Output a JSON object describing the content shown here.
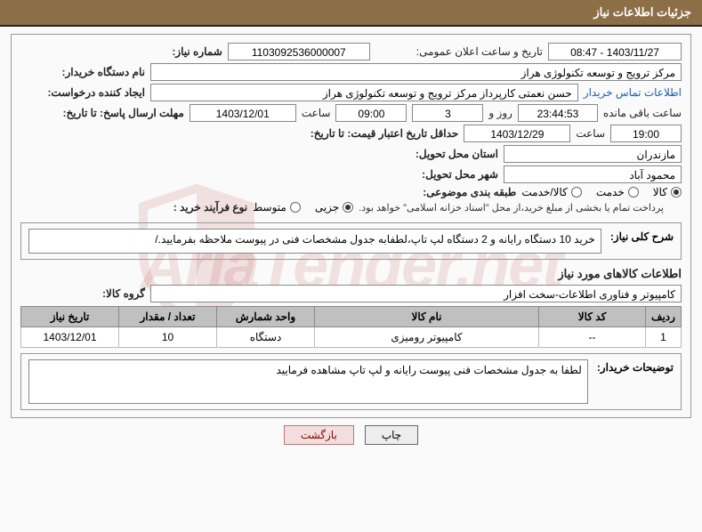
{
  "header": {
    "title": "جزئیات اطلاعات نیاز"
  },
  "fields": {
    "need_number_label": "شماره نیاز:",
    "need_number": "1103092536000007",
    "announce_label": "تاریخ و ساعت اعلان عمومی:",
    "announce_value": "1403/11/27 - 08:47",
    "buyer_org_label": "نام دستگاه خریدار:",
    "buyer_org": "مرکز ترویج و توسعه تکنولوژی هراز",
    "requester_label": "ایجاد کننده درخواست:",
    "requester": "حسن  نعمتی کارپرداز مرکز ترویج و توسعه تکنولوژی هراز",
    "contact_link": "اطلاعات تماس خریدار",
    "deadline_label": "مهلت ارسال پاسخ: تا تاریخ:",
    "deadline_date": "1403/12/01",
    "hour_label": "ساعت",
    "deadline_hour": "09:00",
    "days_count": "3",
    "days_and": "روز و",
    "countdown": "23:44:53",
    "remaining": "ساعت باقی مانده",
    "validity_label": "حداقل تاریخ اعتبار قیمت: تا تاریخ:",
    "validity_date": "1403/12/29",
    "validity_hour": "19:00",
    "province_label": "استان محل تحویل:",
    "province": "مازندران",
    "city_label": "شهر محل تحویل:",
    "city": "محمود آباد",
    "category_label": "طبقه بندی موضوعی:",
    "cat_goods": "کالا",
    "cat_service": "خدمت",
    "cat_goods_service": "کالا/خدمت",
    "purchase_process_label": "نوع فرآیند خرید :",
    "proc_partial": "جزیی",
    "proc_medium": "متوسط",
    "payment_note": "پرداخت تمام یا بخشی از مبلغ خرید،از محل \"اسناد خزانه اسلامی\" خواهد بود."
  },
  "need_desc": {
    "label": "شرح کلی نیاز:",
    "text": "خرید 10 دستگاه رایانه  و 2 دستگاه لپ تاپ،لطفابه جدول مشخصات فنی در پیوست ملاحظه بفرمایید./"
  },
  "goods_section_title": "اطلاعات کالاهای مورد نیاز",
  "goods_group_label": "گروه کالا:",
  "goods_group": "کامپیوتر و فناوری اطلاعات-سخت افزار",
  "table": {
    "headers": [
      "ردیف",
      "کد کالا",
      "نام کالا",
      "واحد شمارش",
      "تعداد / مقدار",
      "تاریخ نیاز"
    ],
    "rows": [
      [
        "1",
        "--",
        "کامپیوتر رومیزی",
        "دستگاه",
        "10",
        "1403/12/01"
      ]
    ],
    "col_widths": [
      "40px",
      "120px",
      "auto",
      "110px",
      "110px",
      "110px"
    ]
  },
  "buyer_notes_label": "توضیحات خریدار:",
  "buyer_notes": "لطفا به جدول مشخصات فنی پیوست رایانه و لپ تاپ مشاهده فرمایید",
  "buttons": {
    "print": "چاپ",
    "back": "بازگشت"
  },
  "watermark": "AriaTender.net",
  "colors": {
    "header_bg": "#8c6f47",
    "border": "#999",
    "th_bg": "#c0c0c0",
    "link": "#1a5fb4",
    "watermark": "rgba(180,40,40,0.12)"
  }
}
